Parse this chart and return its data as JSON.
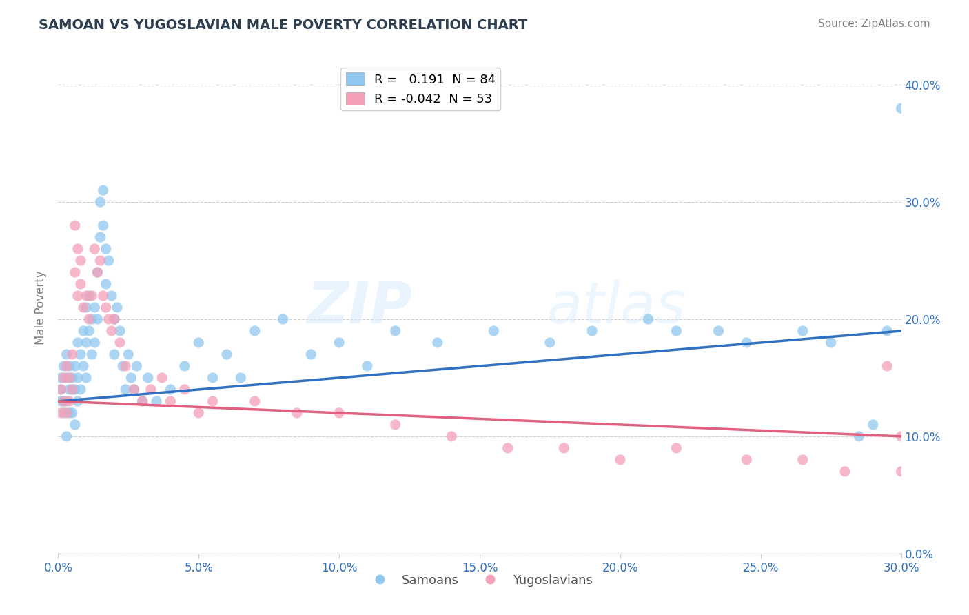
{
  "title": "SAMOAN VS YUGOSLAVIAN MALE POVERTY CORRELATION CHART",
  "source": "Source: ZipAtlas.com",
  "xlim": [
    0.0,
    0.3
  ],
  "ylim": [
    0.0,
    0.42
  ],
  "samoan_color": "#90C8F0",
  "yugoslav_color": "#F4A0B8",
  "samoan_line_color": "#3070C0",
  "yugoslav_line_color": "#E06080",
  "R_samoan": 0.191,
  "N_samoan": 84,
  "R_yugoslav": -0.042,
  "N_yugoslav": 53,
  "watermark_zip": "ZIP",
  "watermark_atlas": "atlas",
  "legend_labels": [
    "Samoans",
    "Yugoslavians"
  ],
  "samoan_x": [
    0.001,
    0.001,
    0.001,
    0.002,
    0.002,
    0.002,
    0.003,
    0.003,
    0.003,
    0.003,
    0.004,
    0.004,
    0.004,
    0.005,
    0.005,
    0.005,
    0.006,
    0.006,
    0.006,
    0.007,
    0.007,
    0.007,
    0.008,
    0.008,
    0.009,
    0.009,
    0.01,
    0.01,
    0.01,
    0.011,
    0.011,
    0.012,
    0.012,
    0.013,
    0.013,
    0.014,
    0.014,
    0.015,
    0.015,
    0.016,
    0.016,
    0.017,
    0.017,
    0.018,
    0.019,
    0.02,
    0.02,
    0.021,
    0.022,
    0.023,
    0.024,
    0.025,
    0.026,
    0.027,
    0.028,
    0.03,
    0.032,
    0.035,
    0.04,
    0.045,
    0.05,
    0.055,
    0.06,
    0.065,
    0.07,
    0.08,
    0.09,
    0.1,
    0.11,
    0.12,
    0.135,
    0.155,
    0.175,
    0.19,
    0.21,
    0.22,
    0.235,
    0.245,
    0.265,
    0.275,
    0.285,
    0.29,
    0.295,
    0.3
  ],
  "samoan_y": [
    0.15,
    0.14,
    0.13,
    0.16,
    0.13,
    0.12,
    0.17,
    0.15,
    0.13,
    0.1,
    0.16,
    0.14,
    0.12,
    0.15,
    0.14,
    0.12,
    0.16,
    0.14,
    0.11,
    0.18,
    0.15,
    0.13,
    0.17,
    0.14,
    0.19,
    0.16,
    0.21,
    0.18,
    0.15,
    0.22,
    0.19,
    0.2,
    0.17,
    0.21,
    0.18,
    0.24,
    0.2,
    0.3,
    0.27,
    0.31,
    0.28,
    0.26,
    0.23,
    0.25,
    0.22,
    0.2,
    0.17,
    0.21,
    0.19,
    0.16,
    0.14,
    0.17,
    0.15,
    0.14,
    0.16,
    0.13,
    0.15,
    0.13,
    0.14,
    0.16,
    0.18,
    0.15,
    0.17,
    0.15,
    0.19,
    0.2,
    0.17,
    0.18,
    0.16,
    0.19,
    0.18,
    0.19,
    0.18,
    0.19,
    0.2,
    0.19,
    0.19,
    0.18,
    0.19,
    0.18,
    0.1,
    0.11,
    0.19,
    0.38
  ],
  "yugoslav_x": [
    0.001,
    0.001,
    0.002,
    0.002,
    0.003,
    0.003,
    0.004,
    0.004,
    0.005,
    0.005,
    0.006,
    0.006,
    0.007,
    0.007,
    0.008,
    0.008,
    0.009,
    0.01,
    0.011,
    0.012,
    0.013,
    0.014,
    0.015,
    0.016,
    0.017,
    0.018,
    0.019,
    0.02,
    0.022,
    0.024,
    0.027,
    0.03,
    0.033,
    0.037,
    0.04,
    0.045,
    0.05,
    0.055,
    0.07,
    0.085,
    0.1,
    0.12,
    0.14,
    0.16,
    0.18,
    0.2,
    0.22,
    0.245,
    0.265,
    0.28,
    0.295,
    0.3,
    0.3
  ],
  "yugoslav_y": [
    0.14,
    0.12,
    0.15,
    0.13,
    0.16,
    0.12,
    0.15,
    0.13,
    0.17,
    0.14,
    0.28,
    0.24,
    0.26,
    0.22,
    0.25,
    0.23,
    0.21,
    0.22,
    0.2,
    0.22,
    0.26,
    0.24,
    0.25,
    0.22,
    0.21,
    0.2,
    0.19,
    0.2,
    0.18,
    0.16,
    0.14,
    0.13,
    0.14,
    0.15,
    0.13,
    0.14,
    0.12,
    0.13,
    0.13,
    0.12,
    0.12,
    0.11,
    0.1,
    0.09,
    0.09,
    0.08,
    0.09,
    0.08,
    0.08,
    0.07,
    0.16,
    0.1,
    0.07
  ],
  "trend_samoan_x0": 0.0,
  "trend_samoan_y0": 0.13,
  "trend_samoan_x1": 0.3,
  "trend_samoan_y1": 0.19,
  "trend_yugoslav_x0": 0.0,
  "trend_yugoslav_y0": 0.13,
  "trend_yugoslav_x1": 0.3,
  "trend_yugoslav_y1": 0.1
}
